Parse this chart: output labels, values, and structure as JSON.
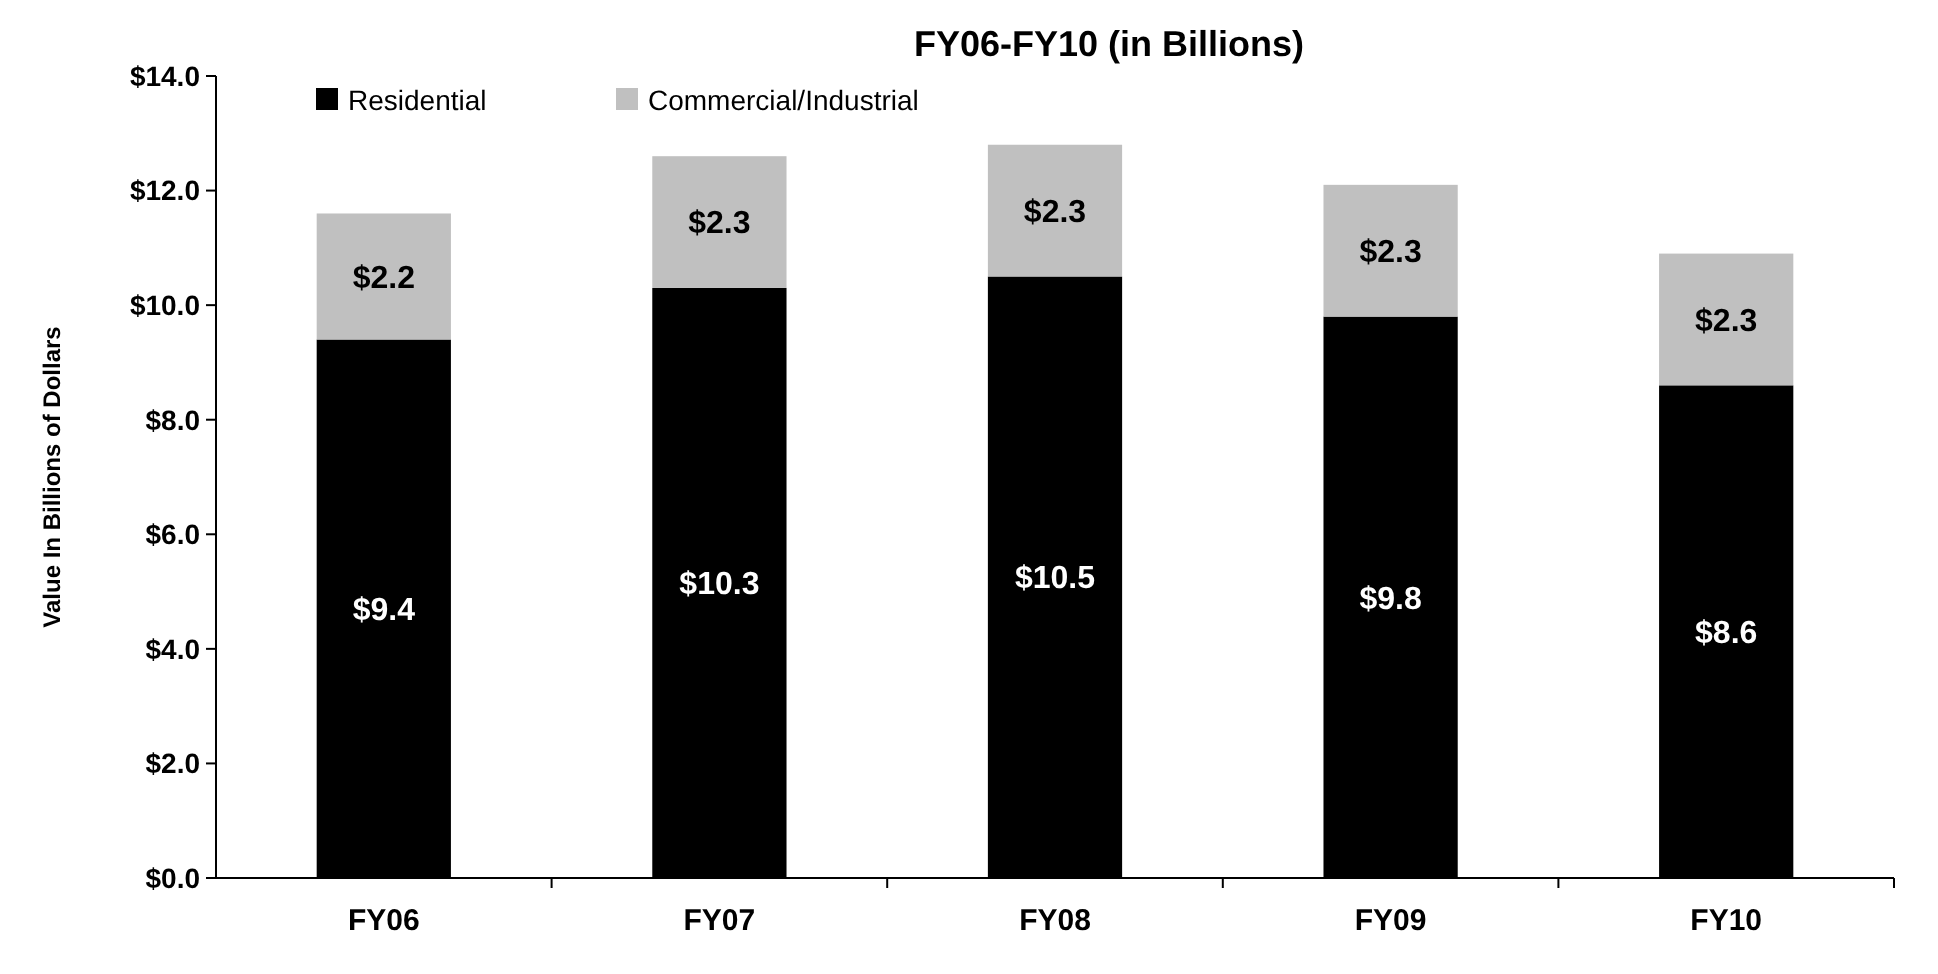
{
  "chart_data": {
    "type": "bar",
    "title": "FY06-FY10 (in Billions)",
    "ylabel": "Value In Billions of Dollars",
    "categories": [
      "FY06",
      "FY07",
      "FY08",
      "FY09",
      "FY10"
    ],
    "stacked": true,
    "legend": "top left",
    "grid": false,
    "series": [
      {
        "name": "Residential",
        "color": "#000000",
        "values": [
          9.4,
          10.3,
          10.5,
          9.8,
          8.6
        ],
        "value_labels": [
          "$9.4",
          "$10.3",
          "$10.5",
          "$9.8",
          "$8.6"
        ]
      },
      {
        "name": "Commercial/Industrial",
        "color": "#c0c0c0",
        "values": [
          2.2,
          2.3,
          2.3,
          2.3,
          2.3
        ],
        "value_labels": [
          "$2.2",
          "$2.3",
          "$2.3",
          "$2.3",
          "$2.3"
        ]
      }
    ],
    "ylim": [
      0,
      14
    ],
    "yticks": [
      {
        "value": 0,
        "label": "$0.0"
      },
      {
        "value": 2,
        "label": "$2.0"
      },
      {
        "value": 4,
        "label": "$4.0"
      },
      {
        "value": 6,
        "label": "$6.0"
      },
      {
        "value": 8,
        "label": "$8.0"
      },
      {
        "value": 10,
        "label": "$10.0"
      },
      {
        "value": 12,
        "label": "$12.0"
      },
      {
        "value": 14,
        "label": "$14.0"
      }
    ]
  }
}
